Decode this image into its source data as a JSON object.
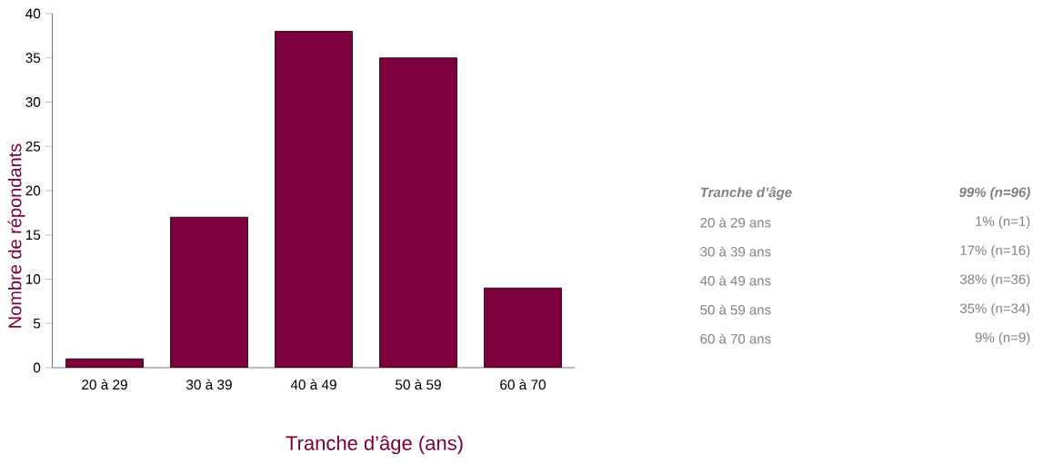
{
  "chart_data": {
    "type": "bar",
    "categories": [
      "20 à 29",
      "30 à 39",
      "40 à 49",
      "50 à 59",
      "60 à 70"
    ],
    "values": [
      1,
      17,
      38,
      35,
      9
    ],
    "color": "#7b003c",
    "xlabel": "Tranche d’âge (ans)",
    "ylabel": "Nombre de répondants",
    "ylim": [
      0,
      40
    ],
    "yticks": [
      0,
      5,
      10,
      15,
      20,
      25,
      30,
      35,
      40
    ],
    "annotations": [
      "Tranche d’âge",
      "99% (n=96)",
      "20 à 29 ans",
      "1% (n=1)",
      "30 à 39 ans",
      "17% (n=16)",
      "40 à 49 ans",
      "38% (n=36)",
      "50 à 59 ans",
      "35% (n=34)",
      "60 à 70 ans",
      "9% (n=9)"
    ]
  }
}
